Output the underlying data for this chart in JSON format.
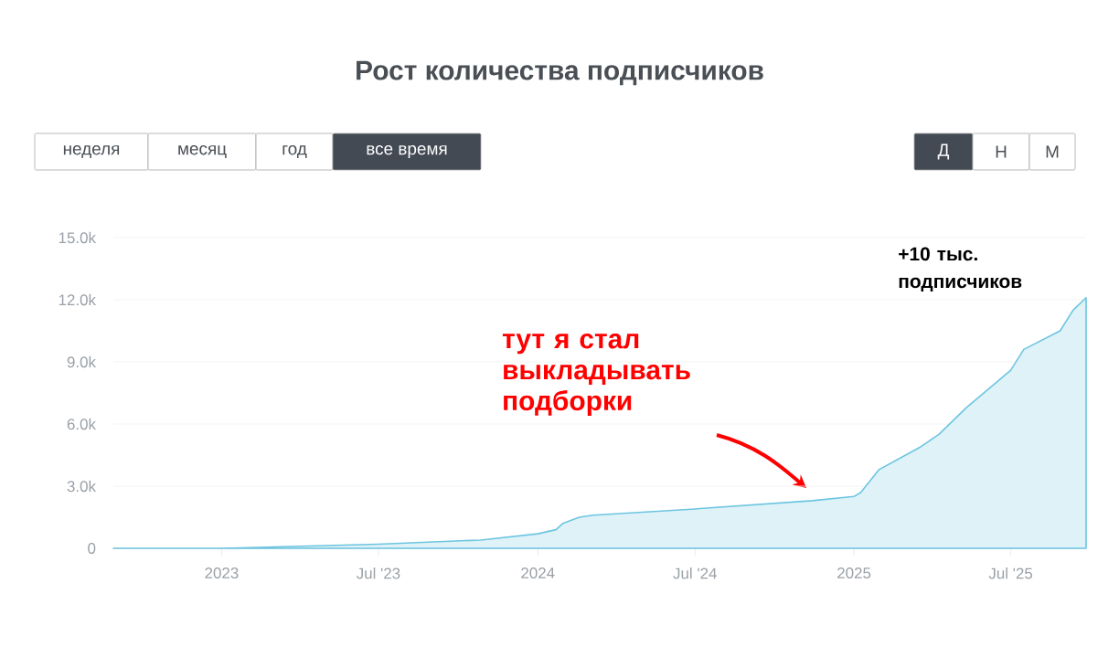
{
  "chart_data": {
    "type": "area",
    "title": "Рост количества подписчиков",
    "x": [
      "2022-08-29",
      "2023-01-01",
      "2023-04-01",
      "2023-07-01",
      "2023-10-27",
      "2024-01-01",
      "2024-01-22",
      "2024-01-30",
      "2024-02-18",
      "2024-03-05",
      "2024-07-01",
      "2024-11-14",
      "2025-01-01",
      "2025-01-09",
      "2025-01-30",
      "2025-03-19",
      "2025-04-09",
      "2025-05-11",
      "2025-07-01",
      "2025-07-16",
      "2025-08-27",
      "2025-09-11",
      "2025-09-26"
    ],
    "values": [
      0,
      0,
      100,
      200,
      400,
      700,
      900,
      1200,
      1500,
      1600,
      1900,
      2300,
      2500,
      2700,
      3800,
      4900,
      5500,
      6800,
      8600,
      9600,
      10500,
      11500,
      12100
    ],
    "color": "#6cc5e0",
    "xlim": [
      "2022-08-29",
      "2025-09-26"
    ],
    "xticks": [
      {
        "value": "2023-01-01",
        "label": "2023"
      },
      {
        "value": "2023-07-01",
        "label": "Jul '23"
      },
      {
        "value": "2024-01-01",
        "label": "2024"
      },
      {
        "value": "2024-07-01",
        "label": "Jul '24"
      },
      {
        "value": "2025-01-01",
        "label": "2025"
      },
      {
        "value": "2025-07-01",
        "label": "Jul '25"
      }
    ],
    "ylim": [
      0,
      15000
    ],
    "yticks": [
      0,
      {
        "value": 3000,
        "label": "3.0k"
      },
      {
        "value": 6000,
        "label": "6.0k"
      },
      {
        "value": 9000,
        "label": "9.0k"
      },
      {
        "value": 12000,
        "label": "12.0k"
      },
      {
        "value": 15000,
        "label": "15.0k"
      }
    ],
    "grid": "y",
    "annotations": [
      "+10 тыс. подписчиков",
      "тут я стал выкладывать подборки",
      "неделя",
      "месяц",
      "год",
      "все время",
      "Д",
      "Н",
      "М"
    ]
  }
}
